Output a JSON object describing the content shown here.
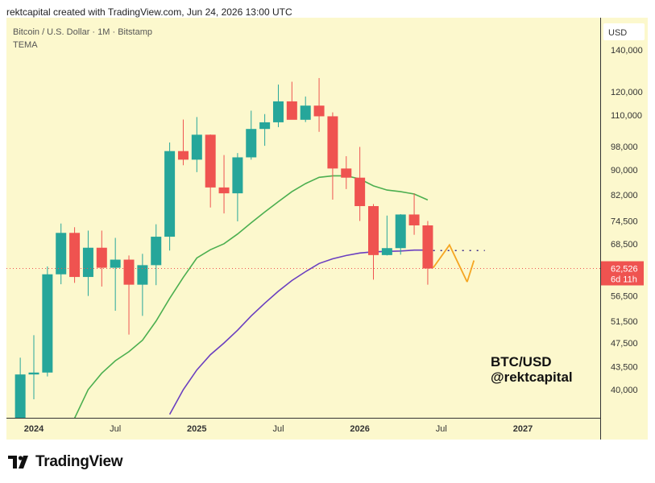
{
  "header": {
    "created_by": "rektcapital created with TradingView.com, Jun 24, 2026 13:00 UTC"
  },
  "brand": {
    "name": "TradingView",
    "logo_icon": "tradingview-logo-icon"
  },
  "chart_data": {
    "type": "candlestick",
    "title": "Bitcoin / U.S. Dollar · 1M · Bitstamp",
    "indicator": "TEMA",
    "currency_button": "USD",
    "watermark_lines": [
      "BTC/USD",
      "@rektcapital"
    ],
    "background": "#fcf8cd",
    "colors": {
      "up": "#26a69a",
      "down": "#ef5350",
      "ema_green": "#4caf50",
      "ema_purple": "#6a3fc0",
      "arrow": "#f5a623",
      "price_tag": "#ef5350"
    },
    "y_scale": "log",
    "ylim": [
      36500,
      200000
    ],
    "y_ticks": [
      {
        "label": "140,000",
        "value": 140000
      },
      {
        "label": "120,000",
        "value": 120000
      },
      {
        "label": "110,000",
        "value": 110000
      },
      {
        "label": "98,000",
        "value": 98000
      },
      {
        "label": "90,000",
        "value": 90000
      },
      {
        "label": "82,000",
        "value": 82000
      },
      {
        "label": "74,500",
        "value": 74500
      },
      {
        "label": "68,500",
        "value": 68500
      },
      {
        "label": "56,500",
        "value": 56500
      },
      {
        "label": "51,500",
        "value": 51500
      },
      {
        "label": "47,500",
        "value": 47500
      },
      {
        "label": "43,500",
        "value": 43500
      },
      {
        "label": "40,000",
        "value": 40000
      }
    ],
    "x_ticks": [
      {
        "label": "2024",
        "month": 0,
        "bold": true
      },
      {
        "label": "Jul",
        "month": 6,
        "bold": false
      },
      {
        "label": "2025",
        "month": 12,
        "bold": true
      },
      {
        "label": "Jul",
        "month": 18,
        "bold": false
      },
      {
        "label": "2026",
        "month": 24,
        "bold": true
      },
      {
        "label": "Jul",
        "month": 30,
        "bold": false
      },
      {
        "label": "2027",
        "month": 36,
        "bold": true
      }
    ],
    "current_price": {
      "value": 62526,
      "label": "62,526",
      "countdown": "6d 11h"
    },
    "candles": [
      {
        "m": -1,
        "o": 35000,
        "h": 45000,
        "l": 34000,
        "c": 42300
      },
      {
        "m": 0,
        "o": 42300,
        "h": 48900,
        "l": 38600,
        "c": 42600
      },
      {
        "m": 1,
        "o": 42600,
        "h": 63000,
        "l": 42000,
        "c": 61200
      },
      {
        "m": 2,
        "o": 61200,
        "h": 73800,
        "l": 59000,
        "c": 71300
      },
      {
        "m": 3,
        "o": 71300,
        "h": 72800,
        "l": 59300,
        "c": 60600
      },
      {
        "m": 4,
        "o": 60600,
        "h": 71900,
        "l": 56500,
        "c": 67500
      },
      {
        "m": 5,
        "o": 67500,
        "h": 71900,
        "l": 58500,
        "c": 62700
      },
      {
        "m": 6,
        "o": 62700,
        "h": 70000,
        "l": 53500,
        "c": 64600
      },
      {
        "m": 7,
        "o": 64600,
        "h": 65600,
        "l": 49000,
        "c": 58900
      },
      {
        "m": 8,
        "o": 58900,
        "h": 66000,
        "l": 52500,
        "c": 63300
      },
      {
        "m": 9,
        "o": 63300,
        "h": 73600,
        "l": 58800,
        "c": 70300
      },
      {
        "m": 10,
        "o": 70300,
        "h": 99500,
        "l": 66800,
        "c": 96400
      },
      {
        "m": 11,
        "o": 96400,
        "h": 108300,
        "l": 91500,
        "c": 93400
      },
      {
        "m": 12,
        "o": 93400,
        "h": 109300,
        "l": 89200,
        "c": 102400
      },
      {
        "m": 13,
        "o": 102400,
        "h": 102500,
        "l": 78300,
        "c": 84300
      },
      {
        "m": 14,
        "o": 84300,
        "h": 95000,
        "l": 76600,
        "c": 82500
      },
      {
        "m": 15,
        "o": 82500,
        "h": 95700,
        "l": 74400,
        "c": 94200
      },
      {
        "m": 16,
        "o": 94200,
        "h": 111900,
        "l": 93400,
        "c": 104600
      },
      {
        "m": 17,
        "o": 104600,
        "h": 110500,
        "l": 98300,
        "c": 107200
      },
      {
        "m": 18,
        "o": 107200,
        "h": 123200,
        "l": 105300,
        "c": 115800
      },
      {
        "m": 19,
        "o": 115800,
        "h": 124500,
        "l": 108800,
        "c": 108200
      },
      {
        "m": 20,
        "o": 108200,
        "h": 117900,
        "l": 107300,
        "c": 114000
      },
      {
        "m": 21,
        "o": 114000,
        "h": 126200,
        "l": 103500,
        "c": 109600
      },
      {
        "m": 22,
        "o": 109600,
        "h": 111200,
        "l": 80600,
        "c": 90400
      },
      {
        "m": 23,
        "o": 90400,
        "h": 94600,
        "l": 83800,
        "c": 87400
      },
      {
        "m": 24,
        "o": 87400,
        "h": 97900,
        "l": 74500,
        "c": 78700
      },
      {
        "m": 25,
        "o": 78700,
        "h": 79300,
        "l": 60000,
        "c": 65700
      },
      {
        "m": 26,
        "o": 65700,
        "h": 76000,
        "l": 65600,
        "c": 67400
      },
      {
        "m": 27,
        "o": 67400,
        "h": 76400,
        "l": 65800,
        "c": 76300
      },
      {
        "m": 28,
        "o": 76300,
        "h": 82500,
        "l": 70800,
        "c": 73300
      },
      {
        "m": 29,
        "o": 73300,
        "h": 74500,
        "l": 58900,
        "c": 62526
      }
    ],
    "series": [
      {
        "name": "ema_green",
        "color": "#4caf50",
        "points": [
          [
            3,
            36000
          ],
          [
            4,
            40000
          ],
          [
            5,
            42500
          ],
          [
            6,
            44500
          ],
          [
            7,
            46000
          ],
          [
            8,
            48000
          ],
          [
            9,
            51500
          ],
          [
            10,
            56000
          ],
          [
            11,
            60500
          ],
          [
            12,
            65000
          ],
          [
            13,
            67000
          ],
          [
            14,
            68500
          ],
          [
            15,
            71000
          ],
          [
            16,
            74000
          ],
          [
            17,
            77000
          ],
          [
            18,
            80000
          ],
          [
            19,
            83000
          ],
          [
            20,
            85500
          ],
          [
            21,
            87500
          ],
          [
            22,
            88000
          ],
          [
            23,
            88000
          ],
          [
            24,
            87000
          ],
          [
            25,
            84800
          ],
          [
            26,
            83500
          ],
          [
            27,
            83000
          ],
          [
            28,
            82300
          ],
          [
            29,
            80500
          ]
        ]
      },
      {
        "name": "ema_purple",
        "color": "#6a3fc0",
        "points": [
          [
            10,
            36500
          ],
          [
            11,
            40000
          ],
          [
            12,
            43000
          ],
          [
            13,
            45500
          ],
          [
            14,
            47500
          ],
          [
            15,
            49800
          ],
          [
            16,
            52500
          ],
          [
            17,
            55000
          ],
          [
            18,
            57500
          ],
          [
            19,
            59800
          ],
          [
            20,
            61800
          ],
          [
            21,
            63700
          ],
          [
            22,
            64800
          ],
          [
            23,
            65600
          ],
          [
            24,
            66200
          ],
          [
            25,
            66500
          ],
          [
            26,
            66600
          ],
          [
            27,
            66700
          ],
          [
            28,
            66900
          ],
          [
            29,
            66900
          ]
        ]
      }
    ],
    "projection": {
      "dotted_level": 66800,
      "dotted_from": 29.4,
      "dotted_to": 33.2,
      "arrow_points": [
        [
          29.4,
          62700
        ],
        [
          30.6,
          68200
        ],
        [
          31.9,
          59500
        ]
      ],
      "arrow_head_to": [
        32.4,
        64400
      ]
    }
  }
}
